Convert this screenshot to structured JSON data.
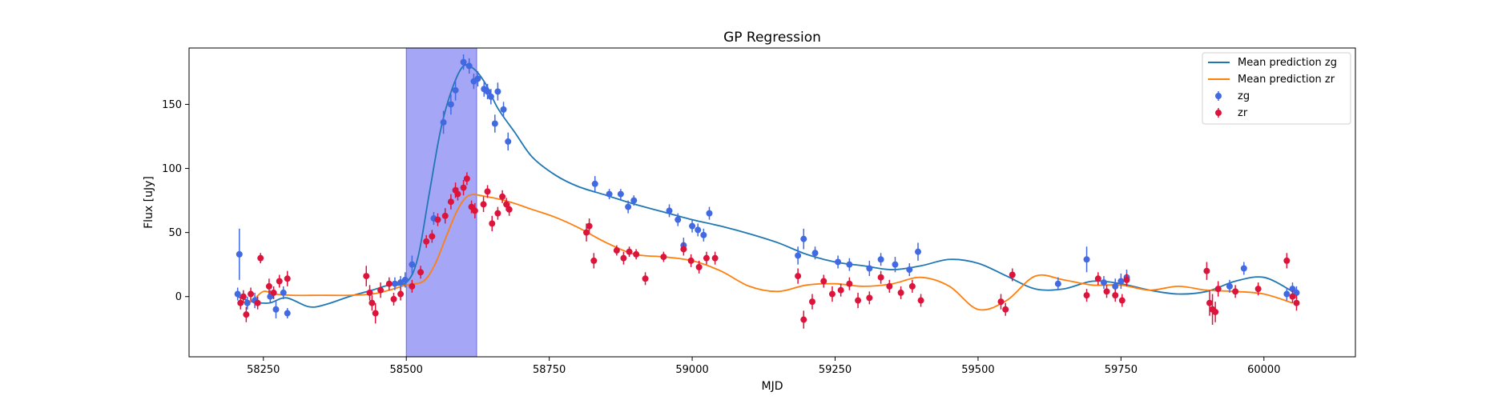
{
  "chart_data": {
    "type": "scatter",
    "title": "GP Regression",
    "xlabel": "MJD",
    "ylabel": "Flux [uJy]",
    "xlim": [
      58120,
      60160
    ],
    "ylim": [
      -47,
      194
    ],
    "xticks": [
      58250,
      58500,
      58750,
      59000,
      59250,
      59500,
      59750,
      60000
    ],
    "yticks": [
      0,
      50,
      100,
      150
    ],
    "grid": false,
    "legend_position": "top-right",
    "highlight_span": {
      "x0": 58500,
      "x1": 58623,
      "color": "#a6a6f7"
    },
    "colors": {
      "zg_points": "#4169e1",
      "zr_points": "#dc143c",
      "zg_line": "#1f77b4",
      "zr_line": "#ff7f0e"
    },
    "legend": [
      {
        "key": "mean_zg",
        "label": "Mean prediction zg",
        "kind": "line",
        "color": "#1f77b4"
      },
      {
        "key": "mean_zr",
        "label": "Mean prediction zr",
        "kind": "line",
        "color": "#ff7f0e"
      },
      {
        "key": "zg",
        "label": "zg",
        "kind": "errorbar",
        "color": "#4169e1"
      },
      {
        "key": "zr",
        "label": "zr",
        "kind": "errorbar",
        "color": "#dc143c"
      }
    ],
    "series": [
      {
        "name": "Mean prediction zg",
        "kind": "line",
        "color": "#1f77b4",
        "x": [
          58205,
          58230,
          58260,
          58290,
          58330,
          58360,
          58400,
          58440,
          58470,
          58500,
          58520,
          58540,
          58560,
          58580,
          58600,
          58620,
          58640,
          58660,
          58690,
          58720,
          58760,
          58800,
          58850,
          58900,
          58950,
          59000,
          59050,
          59100,
          59150,
          59200,
          59250,
          59300,
          59350,
          59400,
          59450,
          59500,
          59550,
          59600,
          59650,
          59700,
          59750,
          59800,
          59850,
          59900,
          59950,
          60000,
          60050
        ],
        "y": [
          0,
          -4,
          -5,
          -1,
          -8,
          -6,
          0,
          5,
          9,
          11,
          30,
          80,
          130,
          162,
          180,
          177,
          165,
          147,
          128,
          109,
          95,
          86,
          79,
          72,
          66,
          60,
          55,
          49,
          42,
          33,
          27,
          24,
          21,
          24,
          29,
          26,
          16,
          6,
          6,
          12,
          10,
          5,
          2,
          4,
          12,
          15,
          4
        ]
      },
      {
        "name": "Mean prediction zr",
        "kind": "line",
        "color": "#ff7f0e",
        "x": [
          58205,
          58230,
          58250,
          58270,
          58300,
          58350,
          58400,
          58440,
          58470,
          58500,
          58530,
          58550,
          58570,
          58590,
          58610,
          58640,
          58680,
          58720,
          58760,
          58800,
          58850,
          58900,
          58950,
          59000,
          59050,
          59100,
          59150,
          59200,
          59250,
          59300,
          59350,
          59400,
          59450,
          59500,
          59550,
          59600,
          59650,
          59700,
          59750,
          59800,
          59850,
          59900,
          59950,
          60000,
          60050
        ],
        "y": [
          -5,
          -3,
          4,
          2,
          1,
          1,
          1,
          2,
          5,
          9,
          12,
          25,
          47,
          68,
          79,
          78,
          74,
          68,
          62,
          54,
          42,
          33,
          31,
          28,
          20,
          8,
          4,
          9,
          10,
          8,
          10,
          15,
          8,
          -10,
          -3,
          16,
          13,
          9,
          9,
          5,
          8,
          5,
          4,
          2,
          -5
        ]
      },
      {
        "name": "zg",
        "kind": "errorbar",
        "color": "#4169e1",
        "x": [
          58205,
          58208,
          58222,
          58235,
          58262,
          58272,
          58285,
          58292,
          58480,
          58490,
          58498,
          58510,
          58548,
          58565,
          58578,
          58586,
          58600,
          58610,
          58618,
          58625,
          58636,
          58642,
          58648,
          58655,
          58660,
          58670,
          58678,
          58830,
          58855,
          58875,
          58888,
          58898,
          58960,
          58975,
          58985,
          59000,
          59010,
          59020,
          59030,
          59185,
          59195,
          59215,
          59255,
          59275,
          59310,
          59330,
          59355,
          59380,
          59395,
          59640,
          59690,
          59720,
          59740,
          59750,
          59760,
          59940,
          59965,
          60040,
          60050,
          60057
        ],
        "y": [
          2,
          33,
          -5,
          -3,
          0,
          -10,
          3,
          -13,
          10,
          11,
          13,
          25,
          61,
          136,
          150,
          161,
          183,
          180,
          168,
          170,
          162,
          160,
          156,
          135,
          160,
          146,
          121,
          88,
          80,
          80,
          70,
          75,
          67,
          60,
          40,
          55,
          52,
          48,
          65,
          32,
          45,
          34,
          27,
          25,
          22,
          29,
          25,
          21,
          35,
          10,
          29,
          11,
          8,
          12,
          15,
          8,
          22,
          2,
          6,
          3
        ],
        "err": [
          5,
          20,
          5,
          6,
          5,
          7,
          5,
          4,
          5,
          5,
          6,
          7,
          5,
          9,
          8,
          8,
          6,
          6,
          6,
          6,
          6,
          6,
          6,
          7,
          7,
          6,
          7,
          6,
          4,
          4,
          5,
          4,
          5,
          5,
          6,
          5,
          5,
          5,
          5,
          7,
          8,
          5,
          5,
          5,
          6,
          5,
          6,
          5,
          7,
          5,
          10,
          5,
          6,
          6,
          6,
          5,
          5,
          5,
          5,
          5
        ]
      },
      {
        "name": "zr",
        "kind": "errorbar",
        "color": "#dc143c",
        "x": [
          58210,
          58215,
          58220,
          58228,
          58240,
          58245,
          58260,
          58268,
          58278,
          58292,
          58430,
          58436,
          58440,
          58446,
          58455,
          58470,
          58478,
          58490,
          58510,
          58525,
          58535,
          58545,
          58555,
          58568,
          58578,
          58586,
          58590,
          58600,
          58606,
          58614,
          58620,
          58635,
          58642,
          58650,
          58660,
          58668,
          58675,
          58680,
          58815,
          58820,
          58828,
          58868,
          58880,
          58890,
          58902,
          58918,
          58950,
          58985,
          58998,
          59012,
          59025,
          59040,
          59185,
          59195,
          59210,
          59230,
          59245,
          59260,
          59275,
          59290,
          59310,
          59330,
          59345,
          59365,
          59385,
          59400,
          59540,
          59548,
          59560,
          59690,
          59710,
          59725,
          59740,
          59752,
          59760,
          59900,
          59905,
          59910,
          59915,
          59920,
          59950,
          59990,
          60040,
          60050,
          60057
        ],
        "y": [
          -5,
          0,
          -14,
          2,
          -5,
          30,
          8,
          3,
          12,
          14,
          16,
          3,
          -5,
          -13,
          5,
          10,
          -2,
          2,
          8,
          19,
          43,
          47,
          60,
          63,
          74,
          83,
          80,
          85,
          92,
          70,
          67,
          72,
          82,
          57,
          65,
          78,
          72,
          68,
          50,
          55,
          28,
          36,
          30,
          35,
          33,
          14,
          31,
          37,
          28,
          23,
          30,
          30,
          16,
          -18,
          -4,
          12,
          2,
          5,
          10,
          -3,
          -1,
          15,
          8,
          3,
          8,
          -3,
          -4,
          -10,
          17,
          1,
          14,
          4,
          1,
          -3,
          13,
          20,
          -5,
          -10,
          -12,
          6,
          4,
          6,
          28,
          0,
          -5
        ],
        "err": [
          5,
          5,
          6,
          5,
          5,
          4,
          6,
          5,
          5,
          6,
          8,
          6,
          6,
          8,
          6,
          5,
          5,
          5,
          5,
          5,
          5,
          5,
          5,
          6,
          6,
          6,
          5,
          6,
          5,
          5,
          6,
          6,
          5,
          6,
          5,
          5,
          5,
          5,
          7,
          6,
          6,
          4,
          5,
          4,
          4,
          5,
          4,
          5,
          5,
          5,
          5,
          5,
          6,
          7,
          6,
          5,
          6,
          5,
          5,
          6,
          5,
          5,
          5,
          5,
          5,
          5,
          6,
          5,
          5,
          5,
          5,
          5,
          5,
          5,
          5,
          7,
          10,
          12,
          8,
          6,
          5,
          5,
          6,
          5,
          6
        ]
      }
    ]
  }
}
